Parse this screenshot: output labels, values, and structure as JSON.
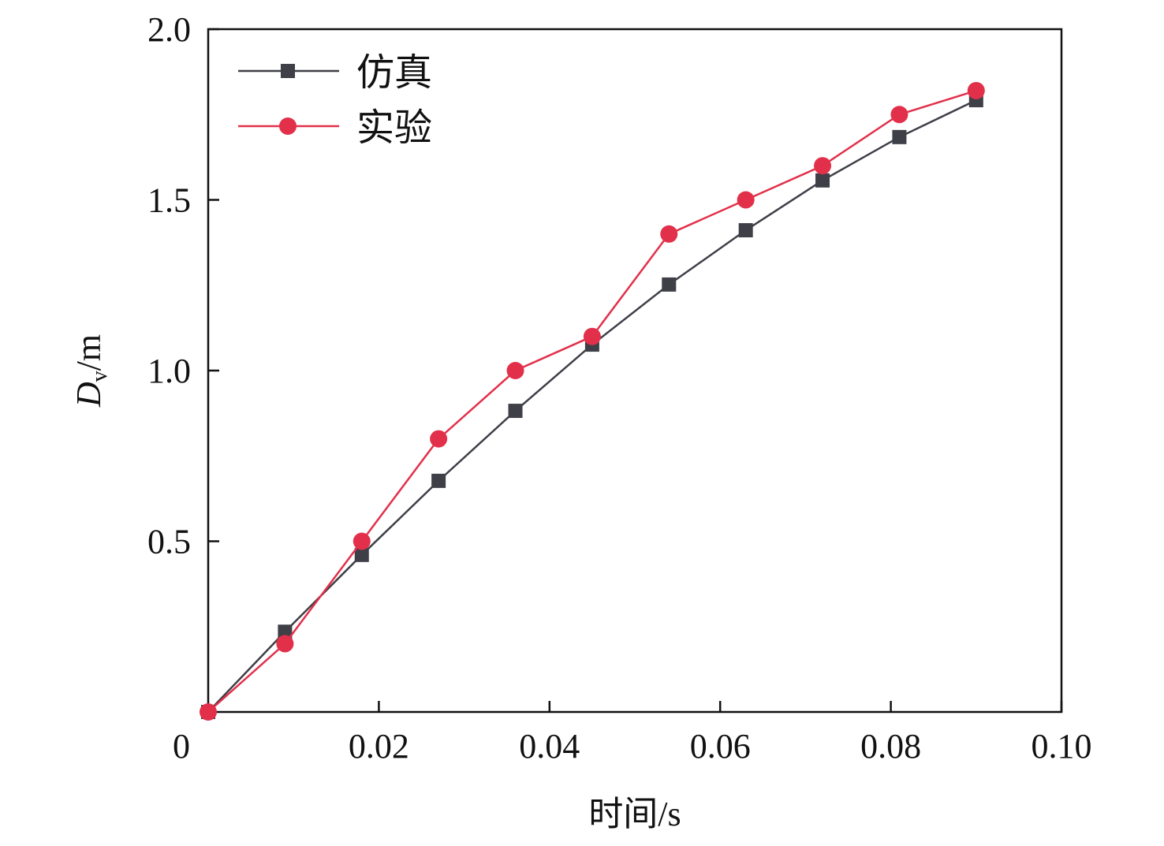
{
  "chart_data": {
    "type": "line",
    "title": "",
    "xlabel": "时间/s",
    "ylabel_main": "D",
    "ylabel_sub": "v",
    "ylabel_unit": "/m",
    "xlim": [
      0,
      0.1
    ],
    "ylim": [
      0,
      2.0
    ],
    "xticks": [
      0,
      0.02,
      0.04,
      0.06,
      0.08,
      0.1
    ],
    "xtick_labels": [
      "0",
      "0.02",
      "0.04",
      "0.06",
      "0.08",
      "0.10"
    ],
    "yticks": [
      0.5,
      1.0,
      1.5,
      2.0
    ],
    "ytick_labels": [
      "0.5",
      "1.0",
      "1.5",
      "2.0"
    ],
    "grid": false,
    "legend_position": "top-left",
    "x": [
      0,
      0.009,
      0.018,
      0.027,
      0.036,
      0.045,
      0.054,
      0.063,
      0.072,
      0.081,
      0.09
    ],
    "series": [
      {
        "name": "仿真",
        "marker": "square",
        "color": "#3e3f47",
        "values": [
          0,
          0.235,
          0.46,
          0.677,
          0.882,
          1.076,
          1.252,
          1.411,
          1.557,
          1.684,
          1.792
        ]
      },
      {
        "name": "实验",
        "marker": "circle",
        "color": "#e2304a",
        "values": [
          0,
          0.2,
          0.5,
          0.8,
          1.0,
          1.1,
          1.4,
          1.5,
          1.6,
          1.75,
          1.82
        ]
      }
    ]
  }
}
